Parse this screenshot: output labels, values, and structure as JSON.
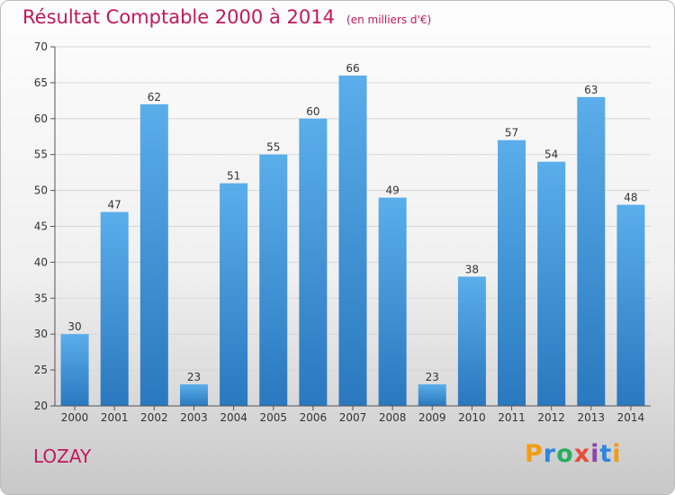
{
  "header": {
    "title": "Résultat Comptable 2000 à 2014",
    "subtitle": "(en milliers d'€)"
  },
  "footer": {
    "place": "LOZAY",
    "logo_letters": [
      "P",
      "r",
      "o",
      "x",
      "i",
      "t",
      "i"
    ],
    "logo_colors": [
      "#f39c12",
      "#2e86de",
      "#27ae60",
      "#e74c3c",
      "#8e44ad",
      "#2e86de",
      "#f39c12"
    ]
  },
  "chart_data": {
    "type": "bar",
    "title": "Résultat Comptable 2000 à 2014",
    "subtitle": "(en milliers d'€)",
    "categories": [
      "2000",
      "2001",
      "2002",
      "2003",
      "2004",
      "2005",
      "2006",
      "2007",
      "2008",
      "2009",
      "2010",
      "2011",
      "2012",
      "2013",
      "2014"
    ],
    "values": [
      30,
      47,
      62,
      23,
      51,
      55,
      60,
      66,
      49,
      23,
      38,
      57,
      54,
      63,
      48
    ],
    "ylim": [
      20,
      70
    ],
    "yticks": [
      20,
      25,
      30,
      35,
      40,
      45,
      50,
      55,
      60,
      65,
      70
    ],
    "grid": true,
    "bar_color": "#3a8fd6"
  }
}
